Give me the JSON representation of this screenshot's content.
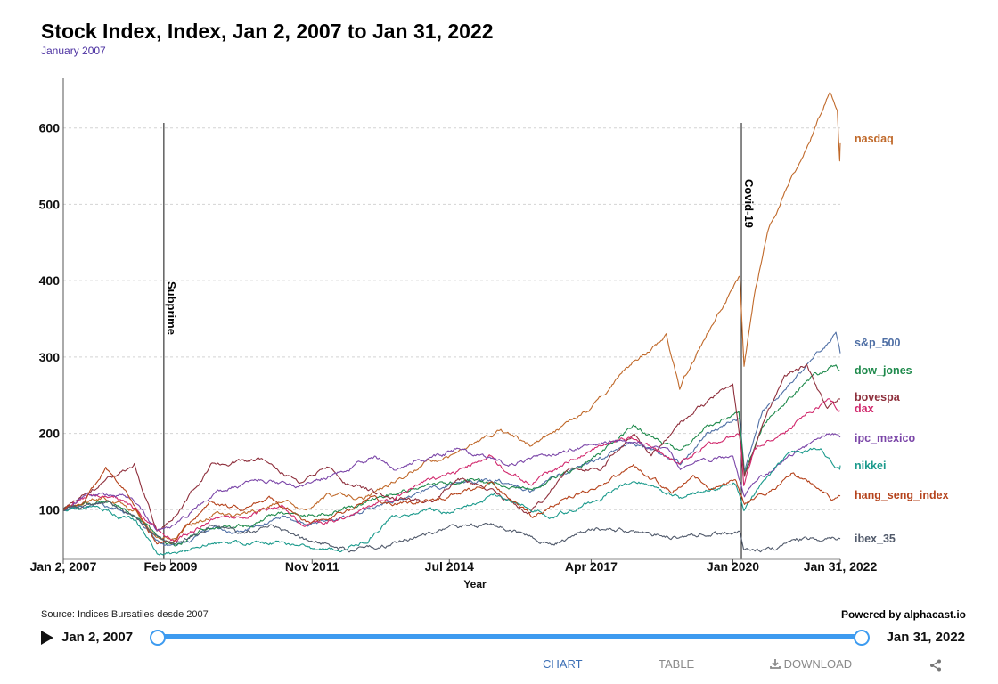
{
  "title": "Stock Index, Index, Jan 2, 2007 to Jan 31, 2022",
  "subtitle": "January 2007",
  "source": "Source: Indices Bursatiles desde 2007",
  "powered_by": "Powered by alphacast.io",
  "slider": {
    "start_label": "Jan 2, 2007",
    "end_label": "Jan 31, 2022"
  },
  "tabs": {
    "chart": "CHART",
    "table": "TABLE",
    "download": "DOWNLOAD"
  },
  "icons": {
    "play": "play-icon",
    "download": "download-icon",
    "share": "share-icon"
  },
  "chart_data": {
    "type": "line",
    "title": "Stock Index, Index, Jan 2, 2007 to Jan 31, 2022",
    "xlabel": "Year",
    "ylabel": "",
    "xlim": [
      "2007-01-02",
      "2022-01-31"
    ],
    "ylim": [
      35,
      665
    ],
    "yticks": [
      100,
      200,
      300,
      400,
      500,
      600
    ],
    "xticks": [
      {
        "date": "2007-01-02",
        "label": "Jan 2, 2007"
      },
      {
        "date": "2009-02-01",
        "label": "Feb 2009"
      },
      {
        "date": "2011-11-01",
        "label": "Nov 2011"
      },
      {
        "date": "2014-07-01",
        "label": "Jul 2014"
      },
      {
        "date": "2017-04-01",
        "label": "Apr 2017"
      },
      {
        "date": "2020-01-01",
        "label": "Jan 2020"
      },
      {
        "date": "2022-01-31",
        "label": "Jan 31, 2022"
      }
    ],
    "grid": "horizontal dashed",
    "legend": "right, at line ends",
    "annotations": [
      {
        "label": "Subprime",
        "date": "2008-12-15"
      },
      {
        "label": "Covid-19",
        "date": "2020-03-01"
      }
    ],
    "series": [
      {
        "name": "nasdaq",
        "color": "#c0692a",
        "points": [
          [
            "2007-01-02",
            100
          ],
          [
            "2007-07-01",
            110
          ],
          [
            "2007-10-15",
            116
          ],
          [
            "2008-06-01",
            98
          ],
          [
            "2008-11-20",
            62
          ],
          [
            "2009-03-01",
            60
          ],
          [
            "2009-06-01",
            78
          ],
          [
            "2010-01-01",
            95
          ],
          [
            "2010-07-01",
            92
          ],
          [
            "2011-04-01",
            112
          ],
          [
            "2011-09-01",
            100
          ],
          [
            "2012-03-01",
            120
          ],
          [
            "2012-11-01",
            115
          ],
          [
            "2013-06-01",
            135
          ],
          [
            "2014-01-01",
            160
          ],
          [
            "2014-07-01",
            170
          ],
          [
            "2015-07-01",
            205
          ],
          [
            "2016-02-01",
            185
          ],
          [
            "2016-07-01",
            200
          ],
          [
            "2017-01-01",
            220
          ],
          [
            "2017-07-01",
            250
          ],
          [
            "2018-01-01",
            290
          ],
          [
            "2018-08-01",
            320
          ],
          [
            "2018-09-15",
            330
          ],
          [
            "2018-12-20",
            260
          ],
          [
            "2019-07-01",
            330
          ],
          [
            "2019-12-31",
            390
          ],
          [
            "2020-02-19",
            405
          ],
          [
            "2020-03-20",
            285
          ],
          [
            "2020-06-01",
            380
          ],
          [
            "2020-09-01",
            460
          ],
          [
            "2021-02-01",
            530
          ],
          [
            "2021-07-01",
            580
          ],
          [
            "2021-11-19",
            650
          ],
          [
            "2022-01-10",
            620
          ],
          [
            "2022-01-27",
            555
          ],
          [
            "2022-01-31",
            580
          ]
        ]
      },
      {
        "name": "s&p_500",
        "color": "#4f6fa5",
        "points": [
          [
            "2007-01-02",
            100
          ],
          [
            "2007-10-01",
            108
          ],
          [
            "2008-06-01",
            90
          ],
          [
            "2008-11-20",
            55
          ],
          [
            "2009-03-09",
            50
          ],
          [
            "2009-12-01",
            75
          ],
          [
            "2010-07-01",
            72
          ],
          [
            "2011-04-01",
            90
          ],
          [
            "2011-10-01",
            80
          ],
          [
            "2012-06-01",
            90
          ],
          [
            "2013-06-01",
            110
          ],
          [
            "2014-01-01",
            125
          ],
          [
            "2014-09-01",
            135
          ],
          [
            "2015-05-01",
            140
          ],
          [
            "2016-02-01",
            125
          ],
          [
            "2016-08-01",
            145
          ],
          [
            "2017-06-01",
            165
          ],
          [
            "2018-01-20",
            190
          ],
          [
            "2018-12-24",
            160
          ],
          [
            "2019-07-01",
            200
          ],
          [
            "2020-02-19",
            220
          ],
          [
            "2020-03-23",
            150
          ],
          [
            "2020-08-01",
            230
          ],
          [
            "2021-01-01",
            255
          ],
          [
            "2021-08-01",
            300
          ],
          [
            "2021-12-31",
            330
          ],
          [
            "2022-01-31",
            305
          ]
        ]
      },
      {
        "name": "dow_jones",
        "color": "#1f8a4c",
        "points": [
          [
            "2007-01-02",
            100
          ],
          [
            "2007-10-01",
            112
          ],
          [
            "2008-06-01",
            92
          ],
          [
            "2008-11-20",
            62
          ],
          [
            "2009-03-09",
            52
          ],
          [
            "2009-12-01",
            80
          ],
          [
            "2010-07-01",
            78
          ],
          [
            "2011-04-01",
            97
          ],
          [
            "2011-10-01",
            90
          ],
          [
            "2012-06-01",
            100
          ],
          [
            "2013-06-01",
            120
          ],
          [
            "2014-01-01",
            130
          ],
          [
            "2014-12-01",
            140
          ],
          [
            "2015-08-01",
            130
          ],
          [
            "2016-02-01",
            128
          ],
          [
            "2016-11-01",
            150
          ],
          [
            "2017-06-01",
            172
          ],
          [
            "2018-01-25",
            210
          ],
          [
            "2018-12-24",
            175
          ],
          [
            "2019-07-01",
            210
          ],
          [
            "2020-02-12",
            225
          ],
          [
            "2020-03-23",
            145
          ],
          [
            "2020-08-01",
            210
          ],
          [
            "2021-01-01",
            240
          ],
          [
            "2021-08-01",
            275
          ],
          [
            "2021-12-31",
            290
          ],
          [
            "2022-01-31",
            282
          ]
        ]
      },
      {
        "name": "bovespa",
        "color": "#8e2f3c",
        "points": [
          [
            "2007-01-02",
            100
          ],
          [
            "2007-07-01",
            125
          ],
          [
            "2008-05-20",
            160
          ],
          [
            "2008-10-27",
            72
          ],
          [
            "2009-03-01",
            90
          ],
          [
            "2009-12-01",
            160
          ],
          [
            "2010-11-01",
            165
          ],
          [
            "2011-08-01",
            135
          ],
          [
            "2012-03-01",
            158
          ],
          [
            "2012-07-01",
            135
          ],
          [
            "2013-06-01",
            115
          ],
          [
            "2014-03-15",
            110
          ],
          [
            "2014-09-01",
            143
          ],
          [
            "2015-09-01",
            112
          ],
          [
            "2016-01-20",
            95
          ],
          [
            "2016-11-01",
            150
          ],
          [
            "2017-06-01",
            155
          ],
          [
            "2018-02-01",
            200
          ],
          [
            "2018-06-01",
            170
          ],
          [
            "2019-01-01",
            215
          ],
          [
            "2019-12-31",
            265
          ],
          [
            "2020-03-23",
            145
          ],
          [
            "2020-09-01",
            225
          ],
          [
            "2021-01-01",
            275
          ],
          [
            "2021-06-07",
            290
          ],
          [
            "2021-11-01",
            230
          ],
          [
            "2022-01-31",
            245
          ]
        ]
      },
      {
        "name": "dax",
        "color": "#d1296d",
        "points": [
          [
            "2007-01-02",
            100
          ],
          [
            "2007-07-01",
            118
          ],
          [
            "2008-01-01",
            118
          ],
          [
            "2008-06-01",
            100
          ],
          [
            "2008-11-20",
            70
          ],
          [
            "2009-03-09",
            58
          ],
          [
            "2009-12-01",
            88
          ],
          [
            "2010-07-01",
            90
          ],
          [
            "2011-04-01",
            105
          ],
          [
            "2011-09-01",
            78
          ],
          [
            "2012-06-01",
            88
          ],
          [
            "2013-06-01",
            115
          ],
          [
            "2014-01-01",
            135
          ],
          [
            "2014-07-01",
            145
          ],
          [
            "2015-04-10",
            170
          ],
          [
            "2015-09-01",
            148
          ],
          [
            "2016-02-01",
            135
          ],
          [
            "2016-12-01",
            165
          ],
          [
            "2017-06-01",
            185
          ],
          [
            "2018-01-23",
            195
          ],
          [
            "2018-12-24",
            160
          ],
          [
            "2019-07-01",
            185
          ],
          [
            "2020-02-19",
            200
          ],
          [
            "2020-03-18",
            130
          ],
          [
            "2020-06-01",
            180
          ],
          [
            "2021-01-01",
            200
          ],
          [
            "2021-06-01",
            225
          ],
          [
            "2021-11-18",
            245
          ],
          [
            "2022-01-31",
            230
          ]
        ]
      },
      {
        "name": "ipc_mexico",
        "color": "#7b46a8",
        "points": [
          [
            "2007-01-02",
            100
          ],
          [
            "2007-06-01",
            120
          ],
          [
            "2008-05-01",
            117
          ],
          [
            "2008-10-27",
            72
          ],
          [
            "2009-03-01",
            78
          ],
          [
            "2009-12-01",
            122
          ],
          [
            "2010-11-01",
            140
          ],
          [
            "2011-08-01",
            130
          ],
          [
            "2012-06-01",
            150
          ],
          [
            "2013-01-25",
            170
          ],
          [
            "2013-06-01",
            155
          ],
          [
            "2014-09-01",
            178
          ],
          [
            "2015-09-01",
            160
          ],
          [
            "2016-08-01",
            175
          ],
          [
            "2017-07-01",
            188
          ],
          [
            "2018-01-01",
            190
          ],
          [
            "2018-10-01",
            175
          ],
          [
            "2018-12-24",
            155
          ],
          [
            "2019-07-01",
            165
          ],
          [
            "2020-01-01",
            170
          ],
          [
            "2020-03-23",
            118
          ],
          [
            "2020-07-01",
            140
          ],
          [
            "2021-01-01",
            165
          ],
          [
            "2021-09-01",
            195
          ],
          [
            "2021-12-31",
            200
          ],
          [
            "2022-01-31",
            195
          ]
        ]
      },
      {
        "name": "nikkei",
        "color": "#1b9a8c",
        "points": [
          [
            "2007-01-02",
            100
          ],
          [
            "2007-07-01",
            105
          ],
          [
            "2008-06-01",
            85
          ],
          [
            "2008-10-28",
            45
          ],
          [
            "2009-03-10",
            42
          ],
          [
            "2009-12-01",
            58
          ],
          [
            "2010-07-01",
            55
          ],
          [
            "2011-03-15",
            58
          ],
          [
            "2011-09-01",
            50
          ],
          [
            "2012-06-01",
            48
          ],
          [
            "2012-12-01",
            60
          ],
          [
            "2013-05-22",
            90
          ],
          [
            "2013-12-31",
            100
          ],
          [
            "2014-06-01",
            95
          ],
          [
            "2015-06-24",
            120
          ],
          [
            "2016-02-01",
            100
          ],
          [
            "2016-06-24",
            90
          ],
          [
            "2017-06-01",
            115
          ],
          [
            "2018-01-23",
            140
          ],
          [
            "2018-12-24",
            115
          ],
          [
            "2019-07-01",
            125
          ],
          [
            "2020-01-20",
            135
          ],
          [
            "2020-03-19",
            100
          ],
          [
            "2020-08-01",
            135
          ],
          [
            "2021-02-16",
            175
          ],
          [
            "2021-09-14",
            178
          ],
          [
            "2022-01-27",
            152
          ],
          [
            "2022-01-31",
            158
          ]
        ]
      },
      {
        "name": "hang_seng_index",
        "color": "#b5431c",
        "points": [
          [
            "2007-01-02",
            100
          ],
          [
            "2007-06-01",
            110
          ],
          [
            "2007-10-30",
            155
          ],
          [
            "2008-04-01",
            120
          ],
          [
            "2008-10-27",
            55
          ],
          [
            "2009-03-09",
            60
          ],
          [
            "2009-11-01",
            110
          ],
          [
            "2010-07-01",
            100
          ],
          [
            "2011-01-01",
            115
          ],
          [
            "2011-10-04",
            82
          ],
          [
            "2012-06-01",
            95
          ],
          [
            "2013-01-01",
            115
          ],
          [
            "2013-06-01",
            105
          ],
          [
            "2014-09-01",
            120
          ],
          [
            "2015-04-28",
            135
          ],
          [
            "2016-02-12",
            90
          ],
          [
            "2016-10-01",
            115
          ],
          [
            "2017-06-01",
            130
          ],
          [
            "2018-01-26",
            155
          ],
          [
            "2018-10-30",
            125
          ],
          [
            "2019-04-01",
            145
          ],
          [
            "2019-08-01",
            125
          ],
          [
            "2020-01-17",
            140
          ],
          [
            "2020-03-23",
            107
          ],
          [
            "2020-09-01",
            122
          ],
          [
            "2021-02-17",
            148
          ],
          [
            "2021-07-01",
            135
          ],
          [
            "2021-12-01",
            115
          ],
          [
            "2022-01-31",
            118
          ]
        ]
      },
      {
        "name": "ibex_35",
        "color": "#515a6b",
        "points": [
          [
            "2007-01-02",
            100
          ],
          [
            "2007-11-08",
            110
          ],
          [
            "2008-06-01",
            90
          ],
          [
            "2008-11-20",
            60
          ],
          [
            "2009-03-09",
            55
          ],
          [
            "2009-12-01",
            82
          ],
          [
            "2010-06-01",
            68
          ],
          [
            "2011-02-01",
            78
          ],
          [
            "2011-09-01",
            62
          ],
          [
            "2012-07-24",
            45
          ],
          [
            "2013-06-01",
            55
          ],
          [
            "2014-06-09",
            75
          ],
          [
            "2015-04-13,",
            80
          ],
          [
            "2015-12-01",
            68
          ],
          [
            "2016-06-27",
            55
          ],
          [
            "2017-05-01",
            75
          ],
          [
            "2018-01-01",
            72
          ],
          [
            "2018-12-24",
            62
          ],
          [
            "2019-07-01",
            68
          ],
          [
            "2020-02-19",
            70
          ],
          [
            "2020-03-16",
            44
          ],
          [
            "2020-10-29",
            48
          ],
          [
            "2021-03-01",
            60
          ],
          [
            "2021-06-01",
            63
          ],
          [
            "2022-01-31",
            62
          ]
        ]
      }
    ]
  }
}
